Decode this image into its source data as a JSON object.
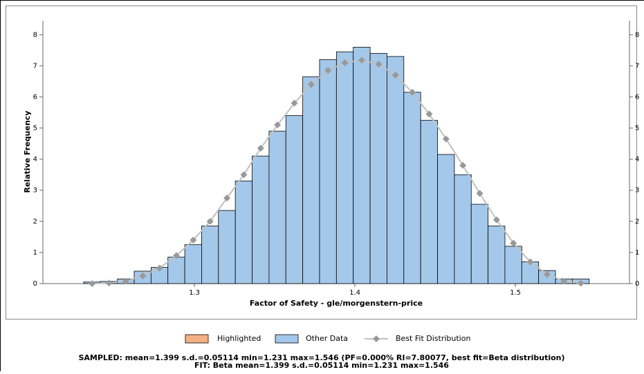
{
  "chart_data": {
    "type": "histogram",
    "xlabel": "Factor of Safety - gle/morgenstern-price",
    "ylabel": "Relative Frequency",
    "bins": [
      1.231,
      1.2415,
      1.252,
      1.2625,
      1.273,
      1.2835,
      1.294,
      1.3045,
      1.315,
      1.3255,
      1.336,
      1.3465,
      1.357,
      1.3675,
      1.378,
      1.3885,
      1.399,
      1.4095,
      1.42,
      1.4305,
      1.441,
      1.4515,
      1.462,
      1.4725,
      1.483,
      1.4935,
      1.504,
      1.5145,
      1.525,
      1.5355,
      1.546
    ],
    "highlight": {
      "name": "Highlighted",
      "color": "#f4b183"
    },
    "series": [
      {
        "name": "Other Data",
        "color": "#a4c8ea",
        "values": [
          0.05,
          0.07,
          0.15,
          0.4,
          0.52,
          0.85,
          1.25,
          1.85,
          2.35,
          3.3,
          4.1,
          4.9,
          5.4,
          6.65,
          7.2,
          7.45,
          7.6,
          7.4,
          7.3,
          6.15,
          5.25,
          4.15,
          3.5,
          2.55,
          1.85,
          1.2,
          0.7,
          0.42,
          0.15,
          0.15
        ]
      }
    ],
    "fit": {
      "name": "Best Fit Distribution",
      "color": "#c0c0c0",
      "marker_color": "#999999",
      "x": [
        1.2363,
        1.2468,
        1.2573,
        1.2678,
        1.2783,
        1.2888,
        1.2993,
        1.3098,
        1.3203,
        1.3308,
        1.3413,
        1.3518,
        1.3623,
        1.3728,
        1.3833,
        1.3938,
        1.4043,
        1.4148,
        1.4253,
        1.4358,
        1.4463,
        1.4568,
        1.4673,
        1.4778,
        1.4883,
        1.4988,
        1.5093,
        1.5198,
        1.5303,
        1.5408
      ],
      "values": [
        0,
        0.02,
        0.08,
        0.25,
        0.5,
        0.9,
        1.4,
        2.0,
        2.75,
        3.5,
        4.35,
        5.1,
        5.8,
        6.4,
        6.85,
        7.1,
        7.18,
        7.05,
        6.7,
        6.15,
        5.45,
        4.65,
        3.8,
        2.9,
        2.05,
        1.3,
        0.7,
        0.3,
        0.08,
        0.01
      ]
    },
    "xlim": [
      1.2056,
      1.5711
    ],
    "xticks": [
      1.3,
      1.4,
      1.5
    ],
    "ylim": [
      0,
      8.45
    ],
    "yticks": [
      0,
      1,
      2,
      3,
      4,
      5,
      6,
      7,
      8
    ],
    "summary": [
      "SAMPLED: mean=1.399 s.d.=0.05114 min=1.231 max=1.546  (PF=0.000% RI=7.80077, best fit=Beta distribution)",
      "FIT: Beta mean=1.399 s.d.=0.05114 min=1.231 max=1.546"
    ]
  }
}
